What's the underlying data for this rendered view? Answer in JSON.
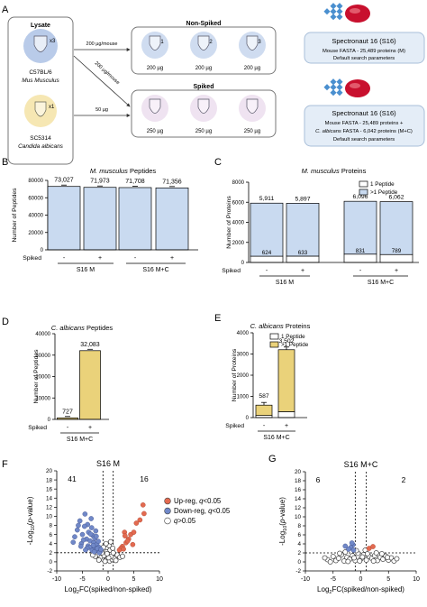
{
  "panels": {
    "A": "A",
    "B": "B",
    "C": "C",
    "D": "D",
    "E": "E",
    "F": "F",
    "G": "G"
  },
  "schematic": {
    "lysate_title": "Lysate",
    "mouse_strain": "C57BL/6",
    "mouse_species": "Mus Musculus",
    "mouse_mult": "x3",
    "yeast_strain": "SC5314",
    "yeast_species": "Candida albicans",
    "yeast_mult": "x1",
    "nonspiked_title": "Non-Spiked",
    "spiked_title": "Spiked",
    "arrow1": "200 µg/mouse",
    "arrow2": "200 µg/mouse",
    "arrow3": "50 µg",
    "nonspiked_tubes": [
      "1",
      "2",
      "3"
    ],
    "nonspiked_amounts": [
      "200 µg",
      "200 µg",
      "200 µg"
    ],
    "spiked_amounts": [
      "250 µg",
      "250 µg",
      "250 µg"
    ],
    "box1": {
      "title": "Spectronaut 16 (S16)",
      "line1": "Mouse FASTA - 25,489 proteins (M)",
      "line2": "Default search parameters"
    },
    "box2": {
      "title": "Spectronaut 16 (S16)",
      "line1": "Mouse FASTA - 25,489 proteins +",
      "line2_it": "C. albicans",
      "line2_rest": " FASTA - 6,042 proteins (M+C)",
      "line3": "Default search parameters"
    },
    "colors": {
      "mouse": "#b9cbe9",
      "yeast": "#f6e7b3",
      "tube_ns": "#cfdcf0",
      "tube_s": "#efe3f1",
      "brand_red": "#c8102e",
      "brand_blue": "#4a8fcf"
    }
  },
  "chart_data": [
    {
      "id": "B",
      "type": "bar",
      "title_it": "M. musculus",
      "title_rest": " Peptides",
      "ylabel": "Number of Peptides",
      "ylim": [
        0,
        80000
      ],
      "yticks": [
        "0",
        "20000",
        "40000",
        "60000",
        "80000"
      ],
      "categories": [
        "-",
        "+",
        "-",
        "+"
      ],
      "values": [
        73027,
        71973,
        71708,
        71356
      ],
      "labels": [
        "73,027",
        "71,973",
        "71,708",
        "71,356"
      ],
      "row_label": "Spiked",
      "groups": [
        "S16 M",
        "S16 M+C"
      ],
      "color": "#c9daf0"
    },
    {
      "id": "C",
      "type": "bar",
      "title_it": "M. musculus",
      "title_rest": " Proteins",
      "ylabel": "Number of Proteins",
      "ylim": [
        0,
        8000
      ],
      "yticks": [
        "0",
        "2000",
        "4000",
        "6000",
        "8000"
      ],
      "categories": [
        "-",
        "+",
        "-",
        "+"
      ],
      "series": [
        {
          "name": "1 Peptide",
          "values": [
            624,
            633,
            831,
            789
          ],
          "color": "#ffffff"
        },
        {
          "name": ">1 Peptide",
          "values": [
            5287,
            5264,
            5265,
            5273
          ],
          "color": "#c9daf0"
        }
      ],
      "top_labels": [
        "5,911",
        "5,897",
        "6,096",
        "6,062"
      ],
      "bottom_labels": [
        "624",
        "633",
        "831",
        "789"
      ],
      "row_label": "Spiked",
      "groups": [
        "S16 M",
        "S16 M+C"
      ]
    },
    {
      "id": "D",
      "type": "bar",
      "title_it": "C. albicans",
      "title_rest": " Peptides",
      "ylabel": "Number of Peptides",
      "ylim": [
        0,
        40000
      ],
      "yticks": [
        "0",
        "10000",
        "20000",
        "30000",
        "40000"
      ],
      "categories": [
        "-",
        "+"
      ],
      "values": [
        727,
        32083
      ],
      "labels": [
        "727",
        "32,083"
      ],
      "row_label": "Spiked",
      "groups": [
        "S16 M+C"
      ],
      "color": "#ead27a"
    },
    {
      "id": "E",
      "type": "bar",
      "title_it": "C. albicans",
      "title_rest": " Proteins",
      "ylabel": "Number of Proteins",
      "ylim": [
        0,
        4000
      ],
      "yticks": [
        "0",
        "1000",
        "2000",
        "3000",
        "4000"
      ],
      "categories": [
        "-",
        "+"
      ],
      "series": [
        {
          "name": "1 Peptide",
          "values": [
            100,
            280
          ],
          "color": "#ffffff"
        },
        {
          "name": ">1 Peptide",
          "values": [
            487,
            2922
          ],
          "color": "#ead27a"
        }
      ],
      "top_labels": [
        "587",
        "3,502"
      ],
      "row_label": "Spiked",
      "groups": [
        "S16 M+C"
      ]
    },
    {
      "id": "F",
      "type": "scatter",
      "title": "S16 M",
      "xlabel": "Log2FC(spiked/non-spiked)",
      "ylabel": "-Log10(p-value)",
      "xlim": [
        -10,
        10
      ],
      "ylim": [
        -2,
        20
      ],
      "xticks": [
        "-10",
        "-5",
        "0",
        "5",
        "10"
      ],
      "yticks": [
        "-2",
        "0",
        "2",
        "4",
        "6",
        "8",
        "10",
        "12",
        "14",
        "16",
        "18",
        "20"
      ],
      "count_left": "41",
      "count_right": "16",
      "legend": [
        {
          "label": "Up-reg, q<0.05",
          "color": "#e36a50"
        },
        {
          "label": "Down-reg, q<0.05",
          "color": "#7088c8"
        },
        {
          "label": "q>0.05",
          "color": "#ffffff"
        }
      ],
      "up": [
        [
          3.2,
          6.5
        ],
        [
          4.0,
          5.0
        ],
        [
          3.5,
          4.2
        ],
        [
          5.5,
          8.5
        ],
        [
          6.2,
          9.2
        ],
        [
          7.0,
          10.6
        ],
        [
          2.8,
          3.4
        ],
        [
          3.3,
          5.7
        ],
        [
          4.4,
          6.0
        ],
        [
          2.5,
          3.0
        ],
        [
          3.8,
          4.6
        ],
        [
          6.8,
          12.5
        ],
        [
          2.2,
          2.6
        ],
        [
          4.8,
          3.8
        ],
        [
          3.0,
          2.8
        ],
        [
          5.0,
          6.5
        ]
      ],
      "down": [
        [
          -4.5,
          10.5
        ],
        [
          -5.5,
          9.0
        ],
        [
          -4.0,
          8.2
        ],
        [
          -3.2,
          7.5
        ],
        [
          -6.0,
          7.0
        ],
        [
          -3.8,
          6.5
        ],
        [
          -5.0,
          6.0
        ],
        [
          -3.0,
          5.8
        ],
        [
          -2.6,
          5.2
        ],
        [
          -4.2,
          5.0
        ],
        [
          -3.5,
          4.6
        ],
        [
          -2.8,
          4.2
        ],
        [
          -5.2,
          4.0
        ],
        [
          -2.2,
          3.8
        ],
        [
          -3.9,
          3.5
        ],
        [
          -1.8,
          3.2
        ],
        [
          -2.5,
          3.0
        ],
        [
          -3.0,
          2.8
        ],
        [
          -1.6,
          2.6
        ],
        [
          -2.0,
          2.4
        ],
        [
          -4.6,
          7.8
        ],
        [
          -6.5,
          5.5
        ],
        [
          -3.3,
          9.5
        ],
        [
          -2.4,
          6.8
        ],
        [
          -5.8,
          8.0
        ],
        [
          -1.9,
          4.5
        ],
        [
          -2.9,
          3.6
        ],
        [
          -3.6,
          3.2
        ],
        [
          -4.8,
          4.8
        ],
        [
          -2.1,
          2.9
        ],
        [
          -1.5,
          2.3
        ],
        [
          -3.1,
          2.5
        ],
        [
          -2.7,
          2.2
        ],
        [
          -1.7,
          2.0
        ],
        [
          -4.1,
          3.0
        ],
        [
          -5.3,
          3.4
        ],
        [
          -2.3,
          5.6
        ],
        [
          -3.4,
          6.1
        ],
        [
          -1.4,
          2.7
        ],
        [
          -6.8,
          4.3
        ],
        [
          -4.4,
          2.6
        ]
      ],
      "ns": [
        [
          -1.0,
          0.6
        ],
        [
          -0.5,
          0.3
        ],
        [
          0.3,
          0.2
        ],
        [
          0.8,
          0.5
        ],
        [
          -1.5,
          1.0
        ],
        [
          1.2,
          0.8
        ],
        [
          -0.8,
          1.4
        ],
        [
          0.6,
          1.2
        ],
        [
          -2.0,
          1.6
        ],
        [
          1.8,
          1.5
        ],
        [
          -0.3,
          2.2
        ],
        [
          0.4,
          2.6
        ],
        [
          -1.2,
          2.0
        ],
        [
          1.0,
          2.0
        ],
        [
          -0.6,
          0.1
        ],
        [
          0.1,
          0.9
        ],
        [
          -2.5,
          1.2
        ],
        [
          2.3,
          1.0
        ],
        [
          -1.8,
          0.4
        ],
        [
          1.5,
          0.3
        ],
        [
          -0.2,
          1.8
        ],
        [
          0.9,
          3.0
        ],
        [
          -0.9,
          3.2
        ],
        [
          0.2,
          3.6
        ],
        [
          -3.0,
          1.5
        ],
        [
          2.8,
          1.2
        ],
        [
          -0.4,
          4.0
        ],
        [
          0.5,
          4.4
        ]
      ]
    },
    {
      "id": "G",
      "type": "scatter",
      "title": "S16 M+C",
      "xlabel": "Log2FC(spiked/non-spiked)",
      "ylabel": "-Log10(p-value)",
      "xlim": [
        -10,
        10
      ],
      "ylim": [
        -2,
        20
      ],
      "xticks": [
        "-10",
        "-5",
        "0",
        "5",
        "10"
      ],
      "yticks": [
        "-2",
        "0",
        "2",
        "4",
        "6",
        "8",
        "10",
        "12",
        "14",
        "16",
        "18",
        "20"
      ],
      "count_left": "6",
      "count_right": "2",
      "up": [
        [
          1.5,
          3.0
        ],
        [
          2.2,
          3.4
        ]
      ],
      "down": [
        [
          -1.4,
          3.8
        ],
        [
          -1.8,
          3.2
        ],
        [
          -2.2,
          2.8
        ],
        [
          -1.3,
          2.6
        ],
        [
          -2.8,
          3.5
        ],
        [
          -1.6,
          4.2
        ]
      ],
      "ns": [
        [
          -6.0,
          0.5
        ],
        [
          -5.0,
          1.2
        ],
        [
          -4.5,
          0.3
        ],
        [
          -4.0,
          0.8
        ],
        [
          -3.5,
          1.6
        ],
        [
          -3.0,
          0.2
        ],
        [
          -2.5,
          1.0
        ],
        [
          -2.0,
          0.6
        ],
        [
          -1.5,
          1.4
        ],
        [
          -1.0,
          0.3
        ],
        [
          -0.5,
          1.9
        ],
        [
          0.0,
          0.6
        ],
        [
          0.5,
          1.6
        ],
        [
          1.0,
          0.4
        ],
        [
          1.5,
          1.2
        ],
        [
          2.0,
          0.8
        ],
        [
          2.5,
          1.4
        ],
        [
          3.0,
          0.3
        ],
        [
          3.5,
          1.0
        ],
        [
          4.0,
          0.6
        ],
        [
          4.5,
          1.3
        ],
        [
          5.0,
          0.4
        ],
        [
          5.5,
          0.9
        ],
        [
          6.0,
          0.2
        ],
        [
          6.5,
          0.7
        ],
        [
          -5.5,
          0.0
        ],
        [
          -3.8,
          1.9
        ],
        [
          -2.8,
          2.2
        ],
        [
          -0.8,
          2.5
        ],
        [
          0.8,
          2.6
        ],
        [
          2.8,
          2.0
        ],
        [
          3.8,
          1.8
        ],
        [
          4.8,
          1.0
        ],
        [
          -6.5,
          0.9
        ],
        [
          -1.2,
          0.9
        ],
        [
          1.2,
          1.8
        ],
        [
          -0.2,
          0.2
        ],
        [
          0.3,
          1.1
        ],
        [
          -2.3,
          0.1
        ],
        [
          2.3,
          0.2
        ]
      ]
    }
  ]
}
